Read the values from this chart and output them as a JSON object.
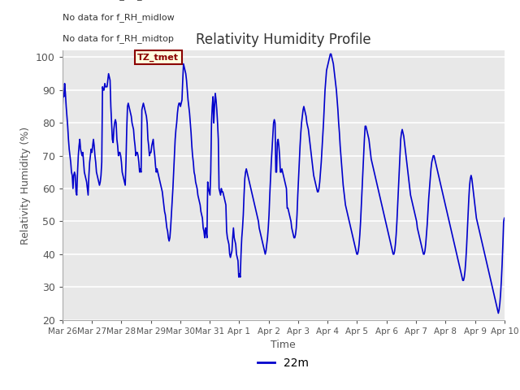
{
  "title": "Relativity Humidity Profile",
  "ylabel": "Relativity Humidity (%)",
  "xlabel": "Time",
  "legend_label": "22m",
  "line_color": "#0000cc",
  "plot_bg_color": "#e8e8e8",
  "fig_bg_color": "#ffffff",
  "ylim": [
    20,
    102
  ],
  "yticks": [
    20,
    30,
    40,
    50,
    60,
    70,
    80,
    90,
    100
  ],
  "annotations": [
    "No data for f_RH_low",
    "No data for f_RH_midlow",
    "No data for f_RH_midtop"
  ],
  "x_tick_labels": [
    "Mar 26",
    "Mar 27",
    "Mar 28",
    "Mar 29",
    "Mar 30",
    "Mar 31",
    "Apr 1",
    "Apr 2",
    "Apr 3",
    "Apr 4",
    "Apr 5",
    "Apr 6",
    "Apr 7",
    "Apr 8",
    "Apr 9",
    "Apr 10"
  ],
  "y_values": [
    83,
    89,
    88,
    92,
    89,
    85,
    82,
    79,
    75,
    72,
    70,
    68,
    65,
    64,
    60,
    64,
    65,
    64,
    59,
    58,
    65,
    70,
    73,
    75,
    72,
    71,
    70,
    71,
    68,
    65,
    64,
    63,
    62,
    60,
    58,
    64,
    68,
    70,
    72,
    71,
    73,
    75,
    73,
    70,
    68,
    65,
    64,
    63,
    62,
    61,
    62,
    64,
    68,
    91,
    90,
    90,
    92,
    91,
    91,
    91,
    93,
    95,
    94,
    93,
    85,
    80,
    75,
    74,
    78,
    80,
    81,
    80,
    75,
    73,
    70,
    71,
    71,
    70,
    68,
    65,
    64,
    63,
    62,
    61,
    68,
    78,
    85,
    86,
    85,
    84,
    83,
    82,
    80,
    79,
    78,
    75,
    73,
    70,
    71,
    71,
    70,
    68,
    65,
    66,
    65,
    84,
    85,
    86,
    85,
    84,
    83,
    82,
    80,
    75,
    73,
    70,
    71,
    71,
    73,
    74,
    75,
    72,
    70,
    67,
    65,
    66,
    65,
    64,
    63,
    62,
    61,
    60,
    59,
    57,
    55,
    53,
    52,
    50,
    48,
    47,
    45,
    44,
    45,
    48,
    52,
    56,
    60,
    65,
    70,
    75,
    78,
    80,
    83,
    85,
    86,
    86,
    85,
    86,
    87,
    93,
    98,
    97,
    96,
    95,
    93,
    90,
    87,
    85,
    83,
    80,
    77,
    73,
    70,
    68,
    65,
    64,
    62,
    61,
    60,
    58,
    57,
    56,
    55,
    53,
    52,
    51,
    48,
    47,
    45,
    48,
    47,
    45,
    62,
    60,
    59,
    58,
    65,
    80,
    85,
    88,
    80,
    85,
    89,
    87,
    84,
    80,
    75,
    60,
    59,
    58,
    60,
    59,
    59,
    58,
    57,
    56,
    55,
    47,
    45,
    44,
    43,
    40,
    39,
    40,
    41,
    45,
    48,
    45,
    44,
    43,
    40,
    39,
    38,
    33,
    34,
    33,
    40,
    45,
    48,
    52,
    58,
    63,
    65,
    66,
    65,
    64,
    63,
    62,
    61,
    60,
    59,
    58,
    57,
    56,
    55,
    54,
    53,
    52,
    51,
    50,
    48,
    47,
    46,
    45,
    44,
    43,
    42,
    41,
    40,
    41,
    43,
    45,
    48,
    52,
    58,
    63,
    68,
    72,
    76,
    80,
    81,
    80,
    65,
    65,
    74,
    75,
    73,
    70,
    65,
    65,
    66,
    65,
    64,
    63,
    62,
    61,
    60,
    54,
    54,
    53,
    52,
    51,
    50,
    48,
    47,
    46,
    45,
    45,
    46,
    48,
    52,
    58,
    63,
    68,
    73,
    77,
    80,
    82,
    84,
    85,
    84,
    83,
    82,
    80,
    79,
    78,
    76,
    74,
    72,
    70,
    68,
    66,
    64,
    63,
    62,
    61,
    60,
    59,
    59,
    60,
    62,
    65,
    68,
    72,
    76,
    80,
    85,
    90,
    93,
    96,
    97,
    98,
    99,
    100,
    101,
    101,
    100,
    99,
    98,
    96,
    94,
    92,
    90,
    87,
    84,
    80,
    77,
    73,
    70,
    67,
    64,
    61,
    59,
    57,
    55,
    54,
    53,
    52,
    51,
    50,
    49,
    48,
    47,
    46,
    45,
    44,
    43,
    42,
    41,
    40,
    40,
    41,
    43,
    46,
    50,
    55,
    60,
    65,
    70,
    75,
    79,
    79,
    78,
    77,
    76,
    75,
    73,
    71,
    69,
    68,
    67,
    66,
    65,
    64,
    63,
    62,
    61,
    60,
    59,
    58,
    57,
    56,
    55,
    54,
    53,
    52,
    51,
    50,
    49,
    48,
    47,
    46,
    45,
    44,
    43,
    42,
    41,
    40,
    40,
    41,
    43,
    46,
    50,
    55,
    60,
    65,
    70,
    75,
    77,
    78,
    77,
    76,
    74,
    72,
    70,
    68,
    66,
    64,
    62,
    60,
    58,
    57,
    56,
    55,
    54,
    53,
    52,
    51,
    50,
    48,
    47,
    46,
    45,
    44,
    43,
    42,
    41,
    40,
    40,
    41,
    43,
    46,
    49,
    53,
    57,
    60,
    63,
    66,
    68,
    69,
    70,
    70,
    69,
    68,
    67,
    66,
    65,
    64,
    63,
    62,
    61,
    60,
    59,
    58,
    57,
    56,
    55,
    54,
    53,
    52,
    51,
    50,
    49,
    48,
    47,
    46,
    45,
    44,
    43,
    42,
    41,
    40,
    39,
    38,
    37,
    36,
    35,
    34,
    33,
    32,
    32,
    33,
    35,
    38,
    42,
    47,
    52,
    57,
    61,
    63,
    64,
    63,
    61,
    59,
    57,
    55,
    53,
    51,
    50,
    49,
    48,
    47,
    46,
    45,
    44,
    43,
    42,
    41,
    40,
    39,
    38,
    37,
    36,
    35,
    34,
    33,
    32,
    31,
    30,
    29,
    28,
    27,
    26,
    25,
    24,
    23,
    22,
    23,
    25,
    28,
    32,
    37,
    43,
    50,
    51
  ]
}
